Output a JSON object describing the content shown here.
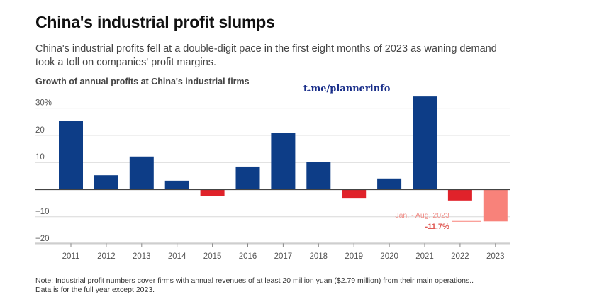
{
  "header": {
    "title": "China's industrial profit slumps",
    "subtitle": "China's industrial profits fell at a double-digit pace in the first eight months of 2023 as waning demand took a toll on companies' profit margins."
  },
  "watermark": "t.me/plannerinfo",
  "footer": {
    "note_line1": "Note: Industrial profit numbers cover firms with annual revenues of at least 20 million yuan ($2.79 million) from their main operations..",
    "note_line2": "Data is for the full year except 2023."
  },
  "colors": {
    "positive": "#0d3d87",
    "negative": "#e0222a",
    "highlight": "#f8827a",
    "grid": "#d8d8d8",
    "zero_line": "#444444"
  },
  "chart_data": {
    "type": "bar",
    "title": "Growth of annual profits at China's industrial firms",
    "categories": [
      "2011",
      "2012",
      "2013",
      "2014",
      "2015",
      "2016",
      "2017",
      "2018",
      "2019",
      "2020",
      "2021",
      "2022",
      "2023"
    ],
    "values": [
      25.4,
      5.3,
      12.2,
      3.3,
      -2.3,
      8.5,
      21.0,
      10.3,
      -3.3,
      4.1,
      34.3,
      -4.0,
      -11.7
    ],
    "ylim": [
      -20,
      34
    ],
    "yticks": [
      30,
      20,
      10,
      0,
      -10,
      -20
    ],
    "ytick_labels": [
      "30%",
      "20",
      "10",
      "",
      "−10",
      "−20"
    ],
    "grid": true,
    "annotation": {
      "category": "2023",
      "label": "Jan. - Aug. 2023",
      "value_label": "-11.7%"
    }
  }
}
